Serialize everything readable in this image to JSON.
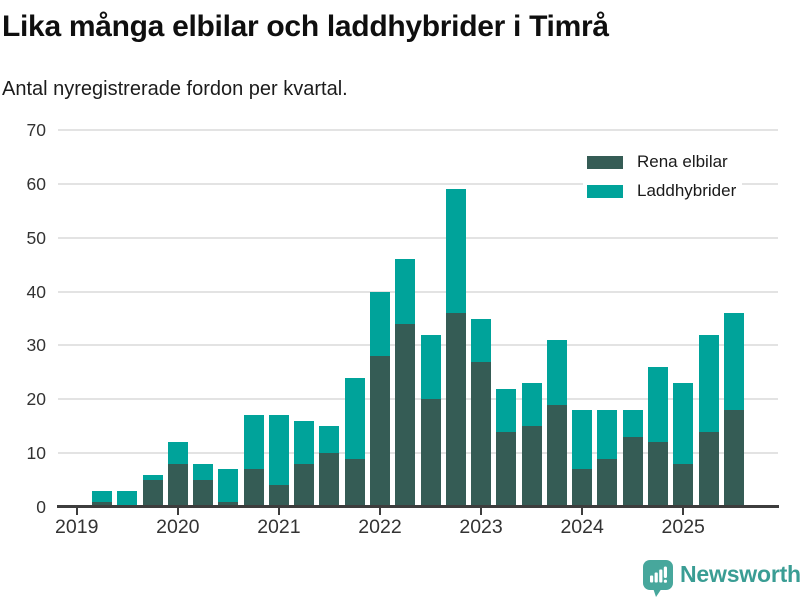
{
  "header": {
    "title": "Lika många elbilar och laddhybrider i Timrå",
    "subtitle": "Antal nyregistrerade fordon per kvartal."
  },
  "legend": {
    "items": [
      {
        "label": "Rena elbilar",
        "color": "#355c55"
      },
      {
        "label": "Laddhybrider",
        "color": "#00a39a"
      }
    ]
  },
  "chart_data": {
    "type": "bar",
    "stacked": true,
    "title": "Lika många elbilar och laddhybrider i Timrå",
    "subtitle": "Antal nyregistrerade fordon per kvartal.",
    "categories": [
      "2019 Q2",
      "2019 Q3",
      "2019 Q4",
      "2020 Q1",
      "2020 Q2",
      "2020 Q3",
      "2020 Q4",
      "2021 Q1",
      "2021 Q2",
      "2021 Q3",
      "2021 Q4",
      "2022 Q1",
      "2022 Q2",
      "2022 Q3",
      "2022 Q4",
      "2023 Q1",
      "2023 Q2",
      "2023 Q3",
      "2023 Q4",
      "2024 Q1",
      "2024 Q2",
      "2024 Q3",
      "2024 Q4",
      "2025 Q1",
      "2025 Q2",
      "2025 Q3"
    ],
    "series": [
      {
        "name": "Rena elbilar",
        "color": "#355c55",
        "values": [
          1,
          0,
          5,
          8,
          5,
          1,
          7,
          4,
          8,
          10,
          9,
          28,
          34,
          20,
          36,
          27,
          14,
          15,
          19,
          7,
          9,
          13,
          12,
          8,
          14,
          18
        ]
      },
      {
        "name": "Laddhybrider",
        "color": "#00a39a",
        "values": [
          2,
          3,
          1,
          4,
          3,
          6,
          10,
          13,
          8,
          5,
          15,
          12,
          12,
          12,
          23,
          8,
          8,
          8,
          12,
          11,
          9,
          5,
          14,
          15,
          18,
          18
        ]
      }
    ],
    "totals": [
      3,
      3,
      6,
      12,
      8,
      7,
      17,
      17,
      16,
      15,
      24,
      40,
      46,
      32,
      59,
      35,
      22,
      23,
      31,
      18,
      18,
      18,
      26,
      23,
      32,
      36
    ],
    "ylim": [
      0,
      70
    ],
    "yticks": [
      0,
      10,
      20,
      30,
      40,
      50,
      60,
      70
    ],
    "x_year_ticks": [
      "2019",
      "2020",
      "2021",
      "2022",
      "2023",
      "2024",
      "2025"
    ],
    "axis_start": "2019 Q1",
    "grid": "horizontal",
    "legend_position": "top-right",
    "colors": {
      "axis": "#3d3d3d",
      "gridline": "#e3e3e3",
      "tick_label": "#333333"
    }
  },
  "footer": {
    "brand": "Newsworthy",
    "brand_color": "#3a9d94",
    "logo_icon": "newsworthy-chart-bubble-icon"
  }
}
